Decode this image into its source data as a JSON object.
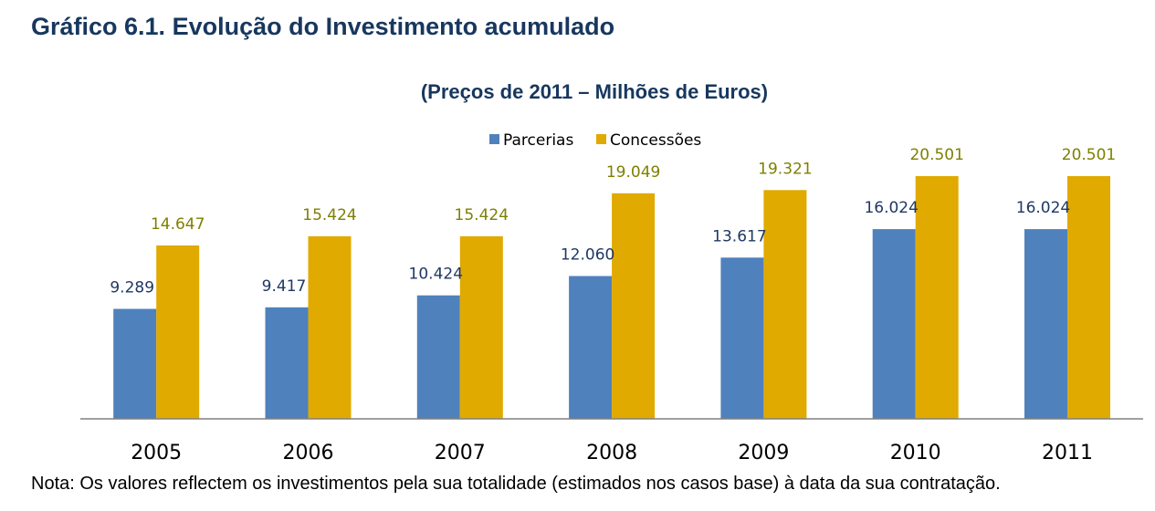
{
  "figure": {
    "title": "Gráfico 6.1. Evolução do Investimento acumulado",
    "note": "Nota: Os valores reflectem os investimentos pela sua totalidade (estimados nos casos base) à data da sua contratação."
  },
  "colors": {
    "title": "#17375e",
    "parcerias": "#4f81bd",
    "concessoes": "#e0aa00",
    "parcerias_label": "#1f3864",
    "concessoes_label": "#7f7f00",
    "axis": "#808080"
  },
  "chart_data": {
    "type": "bar",
    "title": "(Preços de 2011 – Milhões de Euros)",
    "categories": [
      "2005",
      "2006",
      "2007",
      "2008",
      "2009",
      "2010",
      "2011"
    ],
    "series": [
      {
        "name": "Parcerias",
        "values": [
          9289,
          9417,
          10424,
          12060,
          13617,
          16024,
          16024
        ],
        "labels": [
          "9.289",
          "9.417",
          "10.424",
          "12.060",
          "13.617",
          "16.024",
          "16.024"
        ]
      },
      {
        "name": "Concessões",
        "values": [
          14647,
          15424,
          15424,
          19049,
          19321,
          20501,
          20501
        ],
        "labels": [
          "14.647",
          "15.424",
          "15.424",
          "19.049",
          "19.321",
          "20.501",
          "20.501"
        ]
      }
    ],
    "ylim": [
      0,
      20501
    ],
    "grid": false,
    "legend": "top-center",
    "data_labels": true
  }
}
